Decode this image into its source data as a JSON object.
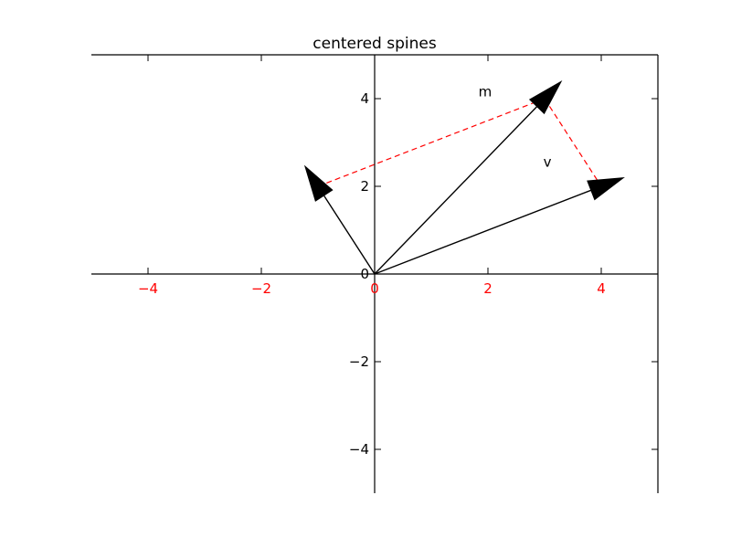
{
  "chart_data": {
    "type": "line",
    "title": "centered spines",
    "xlabel": "",
    "ylabel": "",
    "xlim": [
      -5,
      5
    ],
    "ylim": [
      -5,
      5
    ],
    "grid": false,
    "xticks": [
      -4,
      -2,
      0,
      2,
      4
    ],
    "yticks": [
      -4,
      -2,
      0,
      2,
      4
    ],
    "xtick_labels": [
      "−4",
      "−2",
      "0",
      "2",
      "4"
    ],
    "ytick_labels": [
      "−4",
      "−2",
      "0",
      "2",
      "4"
    ],
    "xtick_color": "#ff0000",
    "ytick_color": "#000000",
    "vectors": [
      {
        "x0": 0,
        "y0": 0,
        "x1": 4,
        "y1": 2
      },
      {
        "x0": 0,
        "y0": 0,
        "x1": -1,
        "y1": 2
      },
      {
        "x0": 0,
        "y0": 0,
        "x1": 3,
        "y1": 4
      }
    ],
    "vector_color": "#000000",
    "dashed_lines": [
      {
        "x": [
          -1,
          3
        ],
        "y": [
          2,
          4
        ]
      },
      {
        "x": [
          3,
          4
        ],
        "y": [
          4,
          2
        ]
      }
    ],
    "dashed_color": "#ff0000",
    "annotations": [
      {
        "text": "m",
        "x": 1.95,
        "y": 4.05
      },
      {
        "text": "v",
        "x": 3.05,
        "y": 2.45
      }
    ]
  }
}
